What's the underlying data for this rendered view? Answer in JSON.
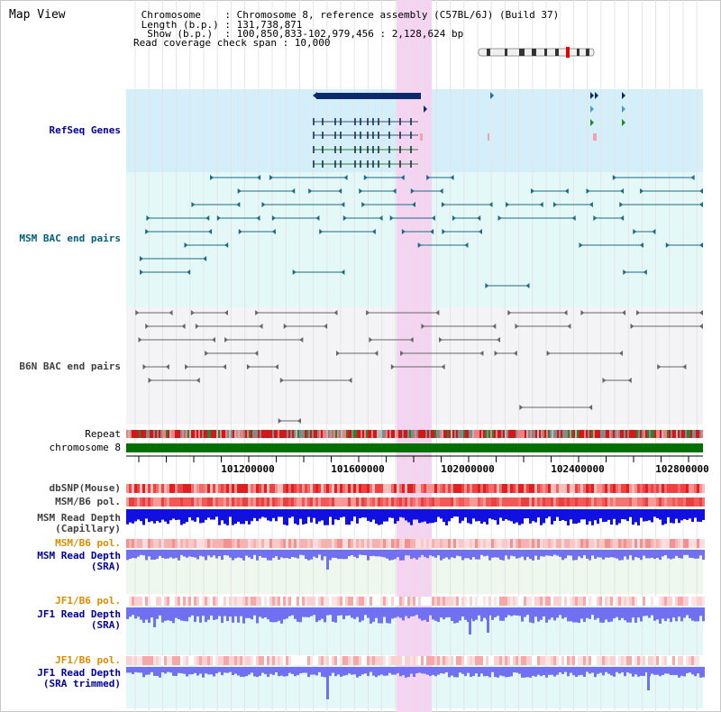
{
  "header": {
    "title": "Map View",
    "info_lines": [
      " Chromosome    : Chromosome 8, reference assembly (C57BL/6J) (Build 37)",
      " Length (b.p.) : 131,738,871",
      "  Show (b.p.)  : 100,850,833-102,979,456 : 2,128,624 bp",
      "Read coverage check span : 10,000"
    ]
  },
  "tracks": {
    "refseq": "RefSeq Genes",
    "msm_bac": "MSM BAC end pairs",
    "b6n_bac": "B6N BAC end pairs",
    "repeat": "Repeat",
    "chromosome": "chromosome 8",
    "dbsnp": "dbSNP(Mouse)",
    "msm_b6_pol": "MSM/B6 pol.",
    "msm_read_depth_cap_1": "MSM Read Depth",
    "msm_read_depth_cap_2": "(Capillary)",
    "msm_b6_pol_2": "MSM/B6 pol.",
    "msm_read_depth_sra_1": "MSM Read Depth",
    "msm_read_depth_sra_2": "(SRA)",
    "jf1_b6_pol": "JF1/B6 pol.",
    "jf1_read_depth_sra_1": "JF1 Read Depth",
    "jf1_read_depth_sra_2": "(SRA)",
    "jf1_b6_pol_2": "JF1/B6 pol.",
    "jf1_read_depth_trim_1": "JF1 Read Depth",
    "jf1_read_depth_trim_2": "(SRA trimmed)"
  },
  "axis": {
    "ticks": [
      "101200000",
      "101600000",
      "102000000",
      "102400000",
      "102800000"
    ]
  },
  "colors": {
    "highlight": "#f5d4f2",
    "refseq_bg": "#d4eefa",
    "msm_bg": "#e4f8f8",
    "b6n_bg": "#f4f4f6",
    "chrom_green": "#007000",
    "depth_blue": "#1010e0",
    "depth_violet": "#7070f0"
  }
}
